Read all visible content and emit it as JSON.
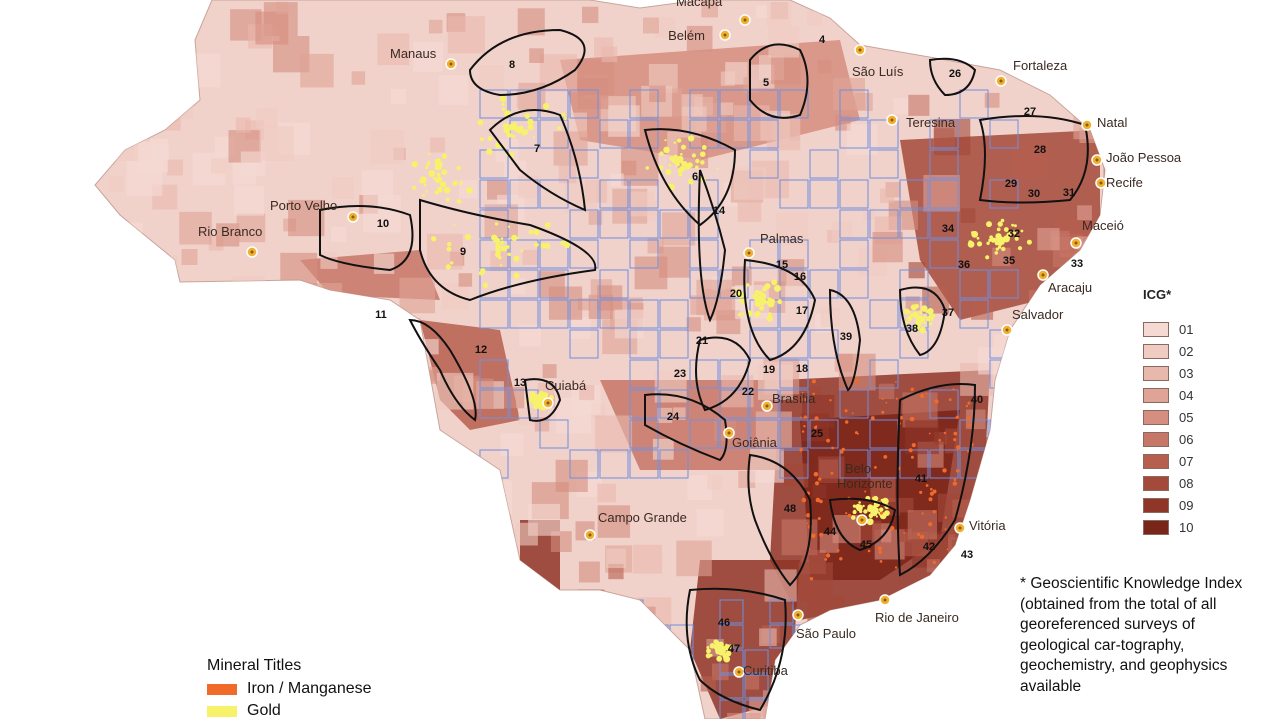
{
  "colors": {
    "icg": [
      "#f5dad4",
      "#f0cbc2",
      "#e9b8ad",
      "#e0a496",
      "#d58e7f",
      "#c77767",
      "#b65f4f",
      "#a34a3b",
      "#8f3628",
      "#7a2519"
    ],
    "grid": "#6f8fe0",
    "city_marker": "#f0b030",
    "iron": "#f06a2a",
    "gold": "#f7f26a"
  },
  "legend": {
    "title": "ICG*",
    "items": [
      "01",
      "02",
      "03",
      "04",
      "05",
      "06",
      "07",
      "08",
      "09",
      "10"
    ]
  },
  "footnote": "* Geoscientific Knowledge Index (obtained from the total of all georeferenced surveys of geological car-tography, geochemistry, and geophysics available",
  "minerals": {
    "title": "Mineral Titles",
    "items": [
      {
        "label": "Iron / Manganese",
        "color": "#f06a2a"
      },
      {
        "label": "Gold",
        "color": "#f7f26a"
      }
    ]
  },
  "cities": [
    {
      "name": "Macapá"
    },
    {
      "name": "Manaus"
    },
    {
      "name": "Belém"
    },
    {
      "name": "São Luís"
    },
    {
      "name": "Fortaleza"
    },
    {
      "name": "Teresina"
    },
    {
      "name": "Natal"
    },
    {
      "name": "João Pessoa"
    },
    {
      "name": "Recife"
    },
    {
      "name": "Maceió"
    },
    {
      "name": "Aracaju"
    },
    {
      "name": "Salvador"
    },
    {
      "name": "Porto Velho"
    },
    {
      "name": "Rio Branco"
    },
    {
      "name": "Palmas"
    },
    {
      "name": "Cuiabá"
    },
    {
      "name": "Brasília"
    },
    {
      "name": "Goiânia"
    },
    {
      "name": "Belo Horizonte"
    },
    {
      "name": "Vitória"
    },
    {
      "name": "Campo Grande"
    },
    {
      "name": "Rio de Janeiro"
    },
    {
      "name": "São Paulo"
    },
    {
      "name": "Curitiba"
    }
  ],
  "regions": [
    "4",
    "5",
    "7",
    "8",
    "6",
    "9",
    "10",
    "11",
    "12",
    "13",
    "14",
    "15",
    "16",
    "17",
    "18",
    "19",
    "20",
    "21",
    "22",
    "23",
    "24",
    "25",
    "26",
    "27",
    "28",
    "29",
    "30",
    "31",
    "32",
    "33",
    "34",
    "35",
    "36",
    "37",
    "38",
    "39",
    "40",
    "41",
    "42",
    "43",
    "44",
    "45",
    "46",
    "47",
    "48"
  ]
}
